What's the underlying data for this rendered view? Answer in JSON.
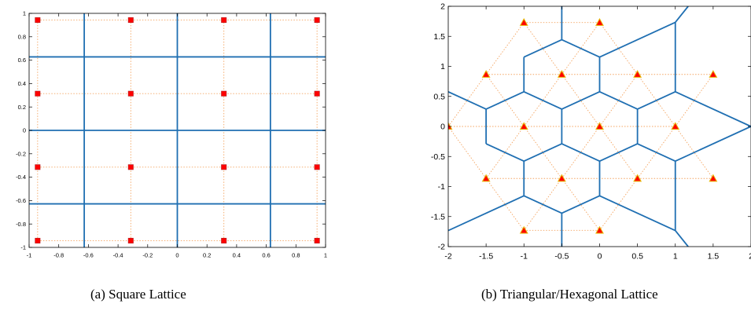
{
  "chart_data": [
    {
      "type": "scatter",
      "caption": "(a) Square Lattice",
      "xlim": [
        -1,
        1
      ],
      "ylim": [
        -1,
        1
      ],
      "xticks": [
        "-1",
        "-0.8",
        "-0.6",
        "-0.4",
        "-0.2",
        "0",
        "0.2",
        "0.4",
        "0.6",
        "0.8",
        "1"
      ],
      "yticks": [
        "-1",
        "-0.8",
        "-0.6",
        "-0.4",
        "-0.2",
        "0",
        "0.2",
        "0.4",
        "0.6",
        "0.8",
        "1"
      ],
      "grid": false,
      "marker": "square",
      "marker_color": "#ff0000",
      "boundary_color": "#1f6fb2",
      "guide_color": "#f4a460",
      "points": [
        [
          -0.9425,
          0.9425
        ],
        [
          -0.314,
          0.9425
        ],
        [
          0.314,
          0.9425
        ],
        [
          0.9425,
          0.9425
        ],
        [
          -0.9425,
          0.314
        ],
        [
          -0.314,
          0.314
        ],
        [
          0.314,
          0.314
        ],
        [
          0.9425,
          0.314
        ],
        [
          -0.9425,
          -0.314
        ],
        [
          -0.314,
          -0.314
        ],
        [
          0.314,
          -0.314
        ],
        [
          0.9425,
          -0.314
        ],
        [
          -0.9425,
          -0.9425
        ],
        [
          -0.314,
          -0.9425
        ],
        [
          0.314,
          -0.9425
        ],
        [
          0.9425,
          -0.9425
        ]
      ],
      "guide_lines": [
        [
          [
            -0.9425,
            0.9425
          ],
          [
            0.9425,
            0.9425
          ]
        ],
        [
          [
            -0.9425,
            0.314
          ],
          [
            0.9425,
            0.314
          ]
        ],
        [
          [
            -0.9425,
            -0.314
          ],
          [
            0.9425,
            -0.314
          ]
        ],
        [
          [
            -0.9425,
            -0.9425
          ],
          [
            0.9425,
            -0.9425
          ]
        ],
        [
          [
            -0.9425,
            -0.9425
          ],
          [
            -0.9425,
            0.9425
          ]
        ],
        [
          [
            -0.314,
            -0.9425
          ],
          [
            -0.314,
            0.9425
          ]
        ],
        [
          [
            0.314,
            -0.9425
          ],
          [
            0.314,
            0.9425
          ]
        ],
        [
          [
            0.9425,
            -0.9425
          ],
          [
            0.9425,
            0.9425
          ]
        ]
      ],
      "boundary_lines": [
        [
          [
            -0.628,
            -1
          ],
          [
            -0.628,
            1
          ]
        ],
        [
          [
            0,
            -1
          ],
          [
            0,
            1
          ]
        ],
        [
          [
            0.628,
            -1
          ],
          [
            0.628,
            1
          ]
        ],
        [
          [
            -1,
            0.628
          ],
          [
            1,
            0.628
          ]
        ],
        [
          [
            -1,
            0
          ],
          [
            1,
            0
          ]
        ],
        [
          [
            -1,
            -0.628
          ],
          [
            1,
            -0.628
          ]
        ]
      ]
    },
    {
      "type": "scatter",
      "caption": "(b) Triangular/Hexagonal Lattice",
      "xlim": [
        -2,
        2
      ],
      "ylim": [
        -2,
        2
      ],
      "xticks": [
        "-2",
        "-1.5",
        "-1",
        "-0.5",
        "0",
        "0.5",
        "1",
        "1.5",
        "2"
      ],
      "yticks": [
        "-2",
        "-1.5",
        "-1",
        "-0.5",
        "0",
        "0.5",
        "1",
        "1.5",
        "2"
      ],
      "grid": false,
      "marker": "triangle",
      "marker_color": "#ff0000",
      "marker_edge_color": "#e6b800",
      "boundary_color": "#1f6fb2",
      "guide_color": "#f4a460",
      "points": [
        [
          -1,
          1.73
        ],
        [
          0,
          1.73
        ],
        [
          -1.5,
          0.866
        ],
        [
          -0.5,
          0.866
        ],
        [
          0.5,
          0.866
        ],
        [
          1.5,
          0.866
        ],
        [
          -2,
          0
        ],
        [
          -1,
          0
        ],
        [
          0,
          0
        ],
        [
          1,
          0
        ],
        [
          -1.5,
          -0.866
        ],
        [
          -0.5,
          -0.866
        ],
        [
          0.5,
          -0.866
        ],
        [
          1.5,
          -0.866
        ],
        [
          -1,
          -1.73
        ],
        [
          0,
          -1.73
        ]
      ],
      "guide_lines": [
        [
          [
            -1,
            1.73
          ],
          [
            0,
            1.73
          ]
        ],
        [
          [
            -1.5,
            0.866
          ],
          [
            1.5,
            0.866
          ]
        ],
        [
          [
            -2,
            0
          ],
          [
            1,
            0
          ]
        ],
        [
          [
            -1.5,
            -0.866
          ],
          [
            1.5,
            -0.866
          ]
        ],
        [
          [
            -1,
            -1.73
          ],
          [
            0,
            -1.73
          ]
        ],
        [
          [
            -1,
            1.73
          ],
          [
            -0.5,
            0.866
          ]
        ],
        [
          [
            -1,
            1.73
          ],
          [
            -1.5,
            0.866
          ]
        ],
        [
          [
            0,
            1.73
          ],
          [
            -0.5,
            0.866
          ]
        ],
        [
          [
            0,
            1.73
          ],
          [
            0.5,
            0.866
          ]
        ],
        [
          [
            -1.5,
            0.866
          ],
          [
            -2,
            0
          ]
        ],
        [
          [
            -1.5,
            0.866
          ],
          [
            -1,
            0
          ]
        ],
        [
          [
            -0.5,
            0.866
          ],
          [
            -1,
            0
          ]
        ],
        [
          [
            -0.5,
            0.866
          ],
          [
            0,
            0
          ]
        ],
        [
          [
            0.5,
            0.866
          ],
          [
            0,
            0
          ]
        ],
        [
          [
            0.5,
            0.866
          ],
          [
            1,
            0
          ]
        ],
        [
          [
            1.5,
            0.866
          ],
          [
            1,
            0
          ]
        ],
        [
          [
            -2,
            0
          ],
          [
            -1.5,
            -0.866
          ]
        ],
        [
          [
            -1,
            0
          ],
          [
            -1.5,
            -0.866
          ]
        ],
        [
          [
            -1,
            0
          ],
          [
            -0.5,
            -0.866
          ]
        ],
        [
          [
            0,
            0
          ],
          [
            -0.5,
            -0.866
          ]
        ],
        [
          [
            0,
            0
          ],
          [
            0.5,
            -0.866
          ]
        ],
        [
          [
            1,
            0
          ],
          [
            0.5,
            -0.866
          ]
        ],
        [
          [
            1,
            0
          ],
          [
            1.5,
            -0.866
          ]
        ],
        [
          [
            -1.5,
            -0.866
          ],
          [
            -1,
            -1.73
          ]
        ],
        [
          [
            -0.5,
            -0.866
          ],
          [
            -1,
            -1.73
          ]
        ],
        [
          [
            -0.5,
            -0.866
          ],
          [
            0,
            -1.73
          ]
        ],
        [
          [
            0.5,
            -0.866
          ],
          [
            0,
            -1.73
          ]
        ]
      ],
      "boundary_lines": [
        [
          [
            -0.5,
            2
          ],
          [
            -0.5,
            1.443
          ]
        ],
        [
          [
            -0.5,
            1.443
          ],
          [
            -1,
            1.155
          ]
        ],
        [
          [
            -0.5,
            1.443
          ],
          [
            0,
            1.155
          ]
        ],
        [
          [
            -1,
            1.155
          ],
          [
            -1,
            0.577
          ]
        ],
        [
          [
            0,
            1.155
          ],
          [
            0,
            0.577
          ]
        ],
        [
          [
            0,
            1.155
          ],
          [
            1,
            1.733
          ]
        ],
        [
          [
            1,
            1.733
          ],
          [
            1.17,
            2
          ]
        ],
        [
          [
            1,
            1.733
          ],
          [
            1,
            0.577
          ]
        ],
        [
          [
            -1,
            0.577
          ],
          [
            -1.5,
            0.289
          ]
        ],
        [
          [
            -1,
            0.577
          ],
          [
            -0.5,
            0.289
          ]
        ],
        [
          [
            0,
            0.577
          ],
          [
            -0.5,
            0.289
          ]
        ],
        [
          [
            0,
            0.577
          ],
          [
            0.5,
            0.289
          ]
        ],
        [
          [
            1,
            0.577
          ],
          [
            0.5,
            0.289
          ]
        ],
        [
          [
            1,
            0.577
          ],
          [
            2,
            0
          ]
        ],
        [
          [
            -1.5,
            0.289
          ],
          [
            -2,
            0.577
          ]
        ],
        [
          [
            -1.5,
            0.289
          ],
          [
            -1.5,
            -0.289
          ]
        ],
        [
          [
            -0.5,
            0.289
          ],
          [
            -0.5,
            -0.289
          ]
        ],
        [
          [
            0.5,
            0.289
          ],
          [
            0.5,
            -0.289
          ]
        ],
        [
          [
            -1.5,
            -0.289
          ],
          [
            -1,
            -0.577
          ]
        ],
        [
          [
            -0.5,
            -0.289
          ],
          [
            -1,
            -0.577
          ]
        ],
        [
          [
            -0.5,
            -0.289
          ],
          [
            0,
            -0.577
          ]
        ],
        [
          [
            0.5,
            -0.289
          ],
          [
            0,
            -0.577
          ]
        ],
        [
          [
            0.5,
            -0.289
          ],
          [
            1,
            -0.577
          ]
        ],
        [
          [
            2,
            0
          ],
          [
            1,
            -0.577
          ]
        ],
        [
          [
            -1,
            -0.577
          ],
          [
            -1,
            -1.155
          ]
        ],
        [
          [
            0,
            -0.577
          ],
          [
            0,
            -1.155
          ]
        ],
        [
          [
            1,
            -0.577
          ],
          [
            1,
            -1.733
          ]
        ],
        [
          [
            -1,
            -1.155
          ],
          [
            -2,
            -1.733
          ]
        ],
        [
          [
            -1,
            -1.155
          ],
          [
            -0.5,
            -1.443
          ]
        ],
        [
          [
            0,
            -1.155
          ],
          [
            -0.5,
            -1.443
          ]
        ],
        [
          [
            0,
            -1.155
          ],
          [
            1,
            -1.733
          ]
        ],
        [
          [
            -0.5,
            -1.443
          ],
          [
            -0.5,
            -2
          ]
        ],
        [
          [
            1,
            -1.733
          ],
          [
            1.17,
            -2
          ]
        ]
      ]
    }
  ]
}
